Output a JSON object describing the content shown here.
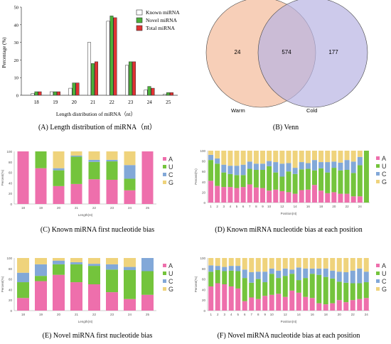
{
  "panels": {
    "A": {
      "caption": "(A) Length distribution of miRNA（nt）"
    },
    "B": {
      "caption": "(B) Venn"
    },
    "C": {
      "caption": "(C) Known miRNA first nucleotide bias"
    },
    "D": {
      "caption": "(D) Known  miRNA nucleotide bias at each position"
    },
    "E": {
      "caption": "(E) Novel miRNA first nucleotide bias"
    },
    "F": {
      "caption": "(F) Novel miRNA nucleotide bias at each position"
    }
  },
  "colors": {
    "known": "#ffffff",
    "novel": "#4caf3a",
    "total": "#e03232",
    "A": "#ee6fac",
    "U": "#74c43c",
    "C": "#82a8d8",
    "G": "#efd37c",
    "warm": "#f6c7ab",
    "cold": "#b8b3e2"
  },
  "chart_data": [
    {
      "panel": "A",
      "type": "bar",
      "xlabel": "Length distribution of miRNA（nt）",
      "ylabel": "Percentage (%)",
      "ylim": [
        0,
        50
      ],
      "yticks": [
        "0",
        "10",
        "20",
        "30",
        "40",
        "50"
      ],
      "categories": [
        "18",
        "19",
        "20",
        "21",
        "22",
        "23",
        "24",
        "25"
      ],
      "series": [
        {
          "name": "Known miRNA",
          "values": [
            1,
            2,
            4,
            30,
            42,
            17,
            3,
            0.5
          ]
        },
        {
          "name": "Novel miRNA",
          "values": [
            2,
            2,
            7,
            18,
            45,
            19,
            5,
            1.5
          ]
        },
        {
          "name": "Total miRNA",
          "values": [
            2,
            2,
            7,
            19,
            44,
            19,
            4,
            1.5
          ]
        }
      ],
      "legend": "top-right"
    },
    {
      "panel": "B",
      "type": "venn",
      "sets": [
        "Warm",
        "Cold"
      ],
      "values": {
        "warm_only": "24",
        "both": "574",
        "cold_only": "177"
      }
    },
    {
      "panel": "C",
      "type": "bar",
      "stacked": true,
      "xlabel": "Length(nt)",
      "ylabel": "Percent(%)",
      "ylim": [
        0,
        100
      ],
      "yticks": [
        "0",
        "20",
        "40",
        "60",
        "80",
        "100"
      ],
      "categories": [
        "18",
        "19",
        "20",
        "21",
        "22",
        "23",
        "24",
        "25"
      ],
      "series": [
        {
          "name": "A",
          "values": [
            100,
            68,
            34,
            38,
            47,
            46,
            26,
            100
          ]
        },
        {
          "name": "U",
          "values": [
            0,
            32,
            30,
            52,
            33,
            35,
            22,
            0
          ]
        },
        {
          "name": "C",
          "values": [
            0,
            0,
            4,
            2,
            4,
            3,
            26,
            0
          ]
        },
        {
          "name": "G",
          "values": [
            0,
            0,
            32,
            8,
            16,
            16,
            26,
            0
          ]
        }
      ],
      "legend": "right"
    },
    {
      "panel": "D",
      "type": "bar",
      "stacked": true,
      "xlabel": "Position(nt)",
      "ylabel": "Percent(%)",
      "ylim": [
        0,
        100
      ],
      "yticks": [
        "0",
        "20",
        "40",
        "60",
        "80",
        "100"
      ],
      "xticks": [
        "1",
        "2",
        "3",
        "4",
        "5",
        "6",
        "7",
        "8",
        "9",
        "10",
        "12",
        "14",
        "16",
        "18",
        "20",
        "22",
        "24"
      ],
      "categories": [
        "1",
        "2",
        "3",
        "4",
        "5",
        "6",
        "7",
        "8",
        "9",
        "10",
        "11",
        "12",
        "13",
        "14",
        "15",
        "16",
        "17",
        "18",
        "19",
        "20",
        "21",
        "22",
        "23",
        "24",
        "25"
      ],
      "series": [
        {
          "name": "A",
          "values": [
            42,
            32,
            30,
            30,
            28,
            30,
            35,
            29,
            28,
            23,
            25,
            22,
            20,
            17,
            24,
            25,
            34,
            23,
            18,
            20,
            17,
            17,
            12,
            12,
            0
          ]
        },
        {
          "name": "U",
          "values": [
            40,
            43,
            28,
            25,
            25,
            23,
            30,
            34,
            35,
            47,
            33,
            28,
            40,
            38,
            40,
            40,
            28,
            43,
            40,
            47,
            45,
            46,
            45,
            60,
            100
          ]
        },
        {
          "name": "C",
          "values": [
            10,
            10,
            15,
            16,
            18,
            20,
            14,
            12,
            12,
            10,
            20,
            25,
            16,
            12,
            14,
            11,
            20,
            12,
            20,
            12,
            15,
            19,
            22,
            16,
            0
          ]
        },
        {
          "name": "G",
          "values": [
            8,
            15,
            27,
            29,
            29,
            27,
            21,
            25,
            25,
            20,
            22,
            25,
            24,
            33,
            22,
            24,
            18,
            22,
            22,
            21,
            23,
            18,
            21,
            12,
            0
          ]
        }
      ],
      "legend": "right"
    },
    {
      "panel": "E",
      "type": "bar",
      "stacked": true,
      "xlabel": "Length(nt)",
      "ylabel": "Percent(%)",
      "ylim": [
        0,
        100
      ],
      "yticks": [
        "0",
        "20",
        "40",
        "60",
        "80",
        "100"
      ],
      "categories": [
        "18",
        "19",
        "20",
        "21",
        "22",
        "23",
        "24",
        "25"
      ],
      "series": [
        {
          "name": "A",
          "values": [
            24,
            56,
            68,
            54,
            50,
            35,
            22,
            30
          ]
        },
        {
          "name": "U",
          "values": [
            30,
            10,
            20,
            34,
            35,
            43,
            55,
            45
          ]
        },
        {
          "name": "C",
          "values": [
            18,
            22,
            7,
            4,
            4,
            10,
            6,
            25
          ]
        },
        {
          "name": "G",
          "values": [
            28,
            12,
            5,
            8,
            11,
            12,
            17,
            0
          ]
        }
      ],
      "legend": "right"
    },
    {
      "panel": "F",
      "type": "bar",
      "stacked": true,
      "xlabel": "Position(nt)",
      "ylabel": "Percent(%)",
      "ylim": [
        0,
        100
      ],
      "yticks": [
        "0",
        "20",
        "40",
        "60",
        "80",
        "100"
      ],
      "xticks": [
        "1",
        "2",
        "3",
        "4",
        "5",
        "6",
        "7",
        "8",
        "9",
        "10",
        "12",
        "14",
        "16",
        "18",
        "20",
        "22",
        "24"
      ],
      "categories": [
        "1",
        "2",
        "3",
        "4",
        "5",
        "6",
        "7",
        "8",
        "9",
        "10",
        "11",
        "12",
        "13",
        "14",
        "15",
        "16",
        "17",
        "18",
        "19",
        "20",
        "21",
        "22",
        "23",
        "24"
      ],
      "series": [
        {
          "name": "A",
          "values": [
            46,
            52,
            50,
            46,
            42,
            18,
            25,
            22,
            28,
            30,
            32,
            26,
            38,
            34,
            26,
            24,
            14,
            12,
            14,
            20,
            16,
            20,
            22,
            24
          ]
        },
        {
          "name": "U",
          "values": [
            28,
            25,
            25,
            30,
            33,
            44,
            28,
            38,
            26,
            40,
            30,
            40,
            32,
            24,
            36,
            46,
            54,
            52,
            47,
            35,
            37,
            32,
            30,
            30
          ]
        },
        {
          "name": "C",
          "values": [
            12,
            8,
            8,
            9,
            10,
            16,
            20,
            14,
            20,
            10,
            14,
            14,
            8,
            24,
            18,
            10,
            12,
            16,
            15,
            19,
            20,
            24,
            28,
            20
          ]
        },
        {
          "name": "G",
          "values": [
            14,
            15,
            17,
            15,
            15,
            22,
            27,
            26,
            26,
            20,
            24,
            20,
            22,
            18,
            20,
            20,
            20,
            20,
            24,
            26,
            27,
            24,
            20,
            26
          ]
        }
      ],
      "legend": "right"
    }
  ]
}
